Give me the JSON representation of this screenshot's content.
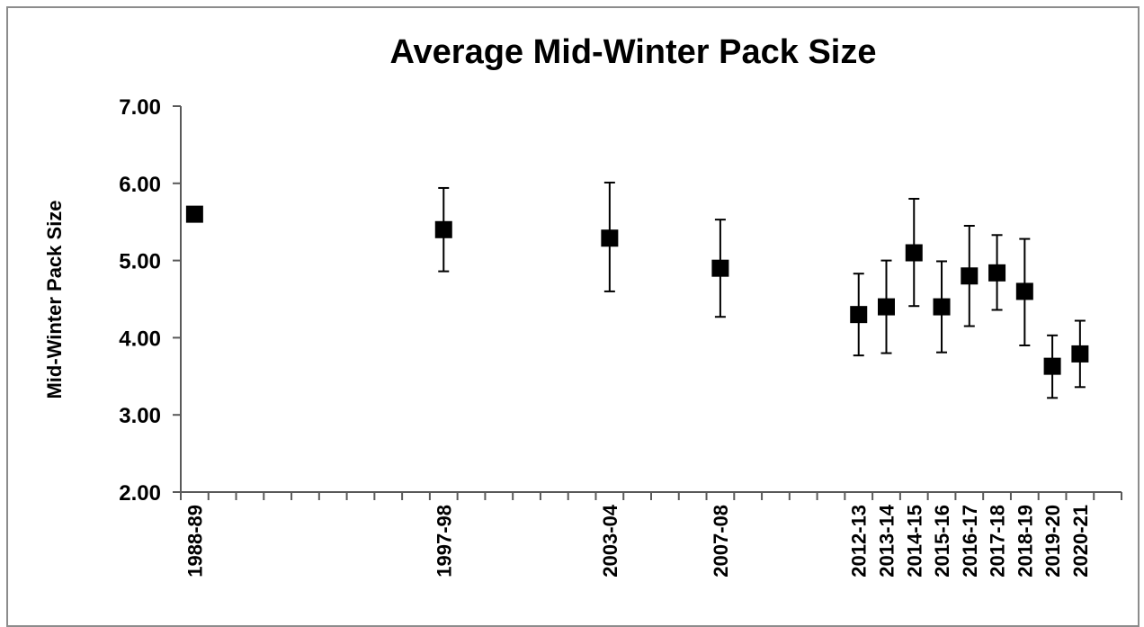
{
  "chart_data": {
    "type": "scatter",
    "title": "Average Mid-Winter Pack Size",
    "xlabel": "",
    "ylabel": "Mid-Winter Pack Size",
    "ylim": [
      2,
      7
    ],
    "y_ticks": [
      "2.00",
      "3.00",
      "4.00",
      "5.00",
      "6.00",
      "7.00"
    ],
    "grid": false,
    "legend": "none",
    "x_axis_years": [
      1988,
      2021
    ],
    "marker": "square",
    "marker_color": "#000000",
    "error_bars": true,
    "points": [
      {
        "label": "1988-89",
        "x": 1988,
        "y": 5.6,
        "lo": null,
        "hi": null
      },
      {
        "label": "1997-98",
        "x": 1997,
        "y": 5.4,
        "lo": 4.86,
        "hi": 5.94
      },
      {
        "label": "2003-04",
        "x": 2003,
        "y": 5.29,
        "lo": 4.6,
        "hi": 6.01
      },
      {
        "label": "2007-08",
        "x": 2007,
        "y": 4.9,
        "lo": 4.27,
        "hi": 5.53
      },
      {
        "label": "2012-13",
        "x": 2012,
        "y": 4.3,
        "lo": 3.77,
        "hi": 4.83
      },
      {
        "label": "2013-14",
        "x": 2013,
        "y": 4.4,
        "lo": 3.8,
        "hi": 5.0
      },
      {
        "label": "2014-15",
        "x": 2014,
        "y": 5.1,
        "lo": 4.41,
        "hi": 5.8
      },
      {
        "label": "2015-16",
        "x": 2015,
        "y": 4.4,
        "lo": 3.81,
        "hi": 4.99
      },
      {
        "label": "2016-17",
        "x": 2016,
        "y": 4.8,
        "lo": 4.15,
        "hi": 5.45
      },
      {
        "label": "2017-18",
        "x": 2017,
        "y": 4.84,
        "lo": 4.36,
        "hi": 5.33
      },
      {
        "label": "2018-19",
        "x": 2018,
        "y": 4.6,
        "lo": 3.9,
        "hi": 5.28
      },
      {
        "label": "2019-20",
        "x": 2019,
        "y": 3.63,
        "lo": 3.22,
        "hi": 4.03
      },
      {
        "label": "2020-21",
        "x": 2020,
        "y": 3.79,
        "lo": 3.36,
        "hi": 4.22
      }
    ]
  }
}
